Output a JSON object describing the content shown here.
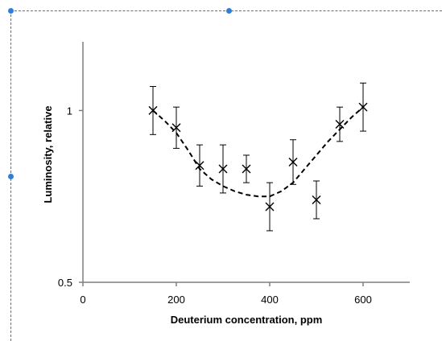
{
  "chart_data": {
    "type": "scatter",
    "xlabel": "Deuterium concentration, ppm",
    "ylabel": "Luminosity, relative",
    "xlim": [
      0,
      700
    ],
    "ylim": [
      0.5,
      1.2
    ],
    "x_ticks": [
      {
        "value": 0,
        "label": "0"
      },
      {
        "value": 200,
        "label": "200"
      },
      {
        "value": 400,
        "label": "400"
      },
      {
        "value": 600,
        "label": "600"
      }
    ],
    "y_ticks": [
      {
        "value": 0.5,
        "label": "0.5"
      },
      {
        "value": 1,
        "label": "1"
      }
    ],
    "grid": false,
    "legend": "none",
    "series": [
      {
        "marker": "x",
        "points": [
          {
            "x": 150,
            "y": 1.0,
            "err": 0.07
          },
          {
            "x": 200,
            "y": 0.95,
            "err": 0.06
          },
          {
            "x": 250,
            "y": 0.84,
            "err": 0.06
          },
          {
            "x": 300,
            "y": 0.83,
            "err": 0.07
          },
          {
            "x": 350,
            "y": 0.83,
            "err": 0.04
          },
          {
            "x": 400,
            "y": 0.72,
            "err": 0.07
          },
          {
            "x": 450,
            "y": 0.85,
            "err": 0.065
          },
          {
            "x": 500,
            "y": 0.74,
            "err": 0.055
          },
          {
            "x": 550,
            "y": 0.96,
            "err": 0.05
          },
          {
            "x": 600,
            "y": 1.01,
            "err": 0.07
          }
        ]
      }
    ],
    "trend": {
      "style": "dashed",
      "x": [
        150,
        175,
        200,
        225,
        250,
        275,
        300,
        325,
        350,
        375,
        400,
        425,
        450,
        475,
        500,
        525,
        550,
        575,
        600
      ],
      "y": [
        1.0,
        0.97,
        0.935,
        0.885,
        0.83,
        0.8,
        0.78,
        0.765,
        0.755,
        0.75,
        0.75,
        0.765,
        0.79,
        0.83,
        0.87,
        0.91,
        0.945,
        0.98,
        1.01
      ]
    }
  },
  "colors": {
    "axis": "#7f7f7f",
    "marker": "#000000",
    "trend": "#000000",
    "selection_handle": "#2f7fd9",
    "selection_frame": "#6d6d6d"
  }
}
